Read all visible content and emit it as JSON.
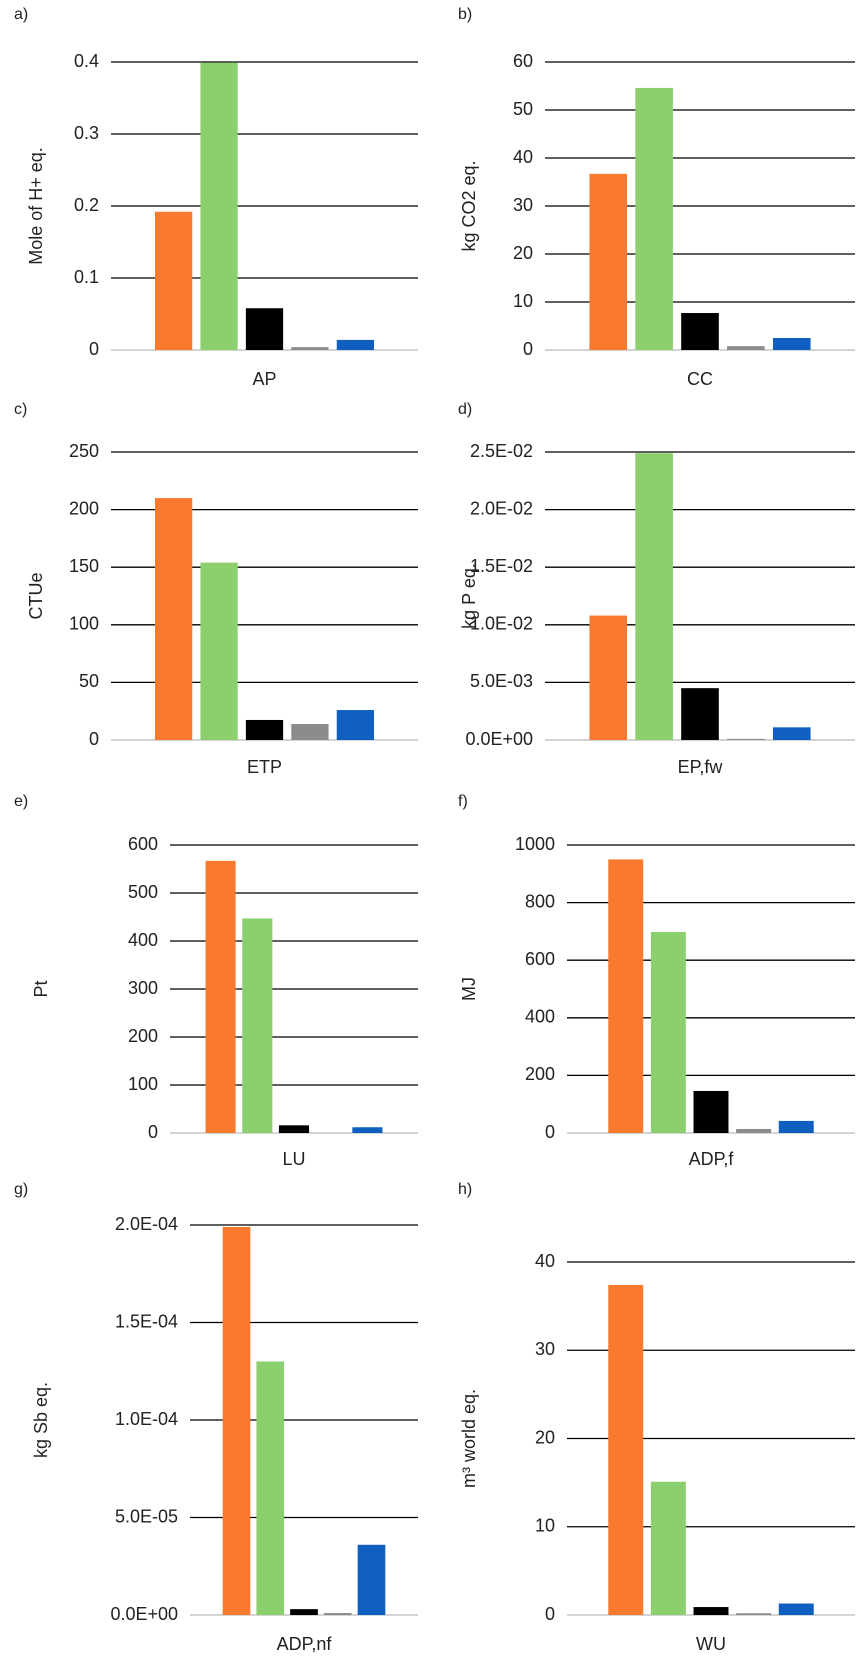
{
  "chart_data": [
    {
      "type": "bar",
      "panel": "a)",
      "ylabel": "Mole of H+ eq.",
      "xlabel": "AP",
      "values": [
        0.192,
        0.399,
        0.058,
        0.004,
        0.014
      ],
      "colors": [
        "#f97a2f",
        "#8bcf6e",
        "#000000",
        "#8c8c8c",
        "#0f5fc0"
      ],
      "ylim": [
        0,
        0.4
      ],
      "yticks": [
        0,
        0.1,
        0.2,
        0.3,
        0.4
      ],
      "grid": true
    },
    {
      "type": "bar",
      "panel": "b)",
      "ylabel": "kg CO2 eq.",
      "xlabel": "CC",
      "values": [
        36.7,
        54.6,
        7.7,
        0.8,
        2.5
      ],
      "colors": [
        "#f97a2f",
        "#8bcf6e",
        "#000000",
        "#8c8c8c",
        "#0f5fc0"
      ],
      "ylim": [
        0,
        60
      ],
      "yticks": [
        0,
        10,
        20,
        30,
        40,
        50,
        60
      ],
      "grid": true
    },
    {
      "type": "bar",
      "panel": "c)",
      "ylabel": "CTUe",
      "xlabel": "ETP",
      "values": [
        210,
        154,
        17.4,
        13.9,
        26
      ],
      "colors": [
        "#f97a2f",
        "#8bcf6e",
        "#000000",
        "#8c8c8c",
        "#0f5fc0"
      ],
      "ylim": [
        0,
        250
      ],
      "yticks": [
        0,
        50,
        100,
        150,
        200,
        250
      ],
      "grid": true
    },
    {
      "type": "bar",
      "panel": "d)",
      "ylabel": "kg P eq.",
      "xlabel": "EP,fw",
      "values": [
        0.0108,
        0.0249,
        0.0045,
        0.0001,
        0.0011
      ],
      "colors": [
        "#f97a2f",
        "#8bcf6e",
        "#000000",
        "#8c8c8c",
        "#0f5fc0"
      ],
      "ylim": [
        0,
        0.025
      ],
      "yticks": [
        {
          "value": 0,
          "label": "0.0E+00"
        },
        {
          "value": 0.005,
          "label": "5.0E-03"
        },
        {
          "value": 0.01,
          "label": "1.0E-02"
        },
        {
          "value": 0.015,
          "label": "1.5E-02"
        },
        {
          "value": 0.02,
          "label": "2.0E-02"
        },
        {
          "value": 0.025,
          "label": "2.5E-02"
        }
      ],
      "grid": true
    },
    {
      "type": "bar",
      "panel": "e)",
      "ylabel": "Pt",
      "xlabel": "LU",
      "values": [
        567,
        447,
        16,
        0,
        12
      ],
      "colors": [
        "#f97a2f",
        "#8bcf6e",
        "#000000",
        "#8c8c8c",
        "#0f5fc0"
      ],
      "ylim": [
        0,
        600
      ],
      "yticks": [
        0,
        100,
        200,
        300,
        400,
        500,
        600
      ],
      "grid": true
    },
    {
      "type": "bar",
      "panel": "f)",
      "ylabel": "MJ",
      "xlabel": "ADP,f",
      "values": [
        950,
        698,
        146,
        14,
        42
      ],
      "colors": [
        "#f97a2f",
        "#8bcf6e",
        "#000000",
        "#8c8c8c",
        "#0f5fc0"
      ],
      "ylim": [
        0,
        1000
      ],
      "yticks": [
        0,
        200,
        400,
        600,
        800,
        1000
      ],
      "grid": true
    },
    {
      "type": "bar",
      "panel": "g)",
      "ylabel": "kg Sb eq.",
      "xlabel": "ADP,nf",
      "values": [
        0.000199,
        0.00013,
        3e-06,
        1e-06,
        3.6e-05
      ],
      "colors": [
        "#f97a2f",
        "#8bcf6e",
        "#000000",
        "#8c8c8c",
        "#0f5fc0"
      ],
      "ylim": [
        0,
        0.0002
      ],
      "yticks": [
        {
          "value": 0,
          "label": "0.0E+00"
        },
        {
          "value": 5e-05,
          "label": "5.0E-05"
        },
        {
          "value": 0.0001,
          "label": "1.0E-04"
        },
        {
          "value": 0.00015,
          "label": "1.5E-04"
        },
        {
          "value": 0.0002,
          "label": "2.0E-04"
        }
      ],
      "grid": true
    },
    {
      "type": "bar",
      "panel": "h)",
      "ylabel": "m³ world eq.",
      "xlabel": "WU",
      "values": [
        37.4,
        15.1,
        0.9,
        0.2,
        1.3
      ],
      "colors": [
        "#f97a2f",
        "#8bcf6e",
        "#000000",
        "#8c8c8c",
        "#0f5fc0"
      ],
      "ylim": [
        0,
        40
      ],
      "yticks": [
        0,
        10,
        20,
        30,
        40
      ],
      "grid": true
    }
  ]
}
